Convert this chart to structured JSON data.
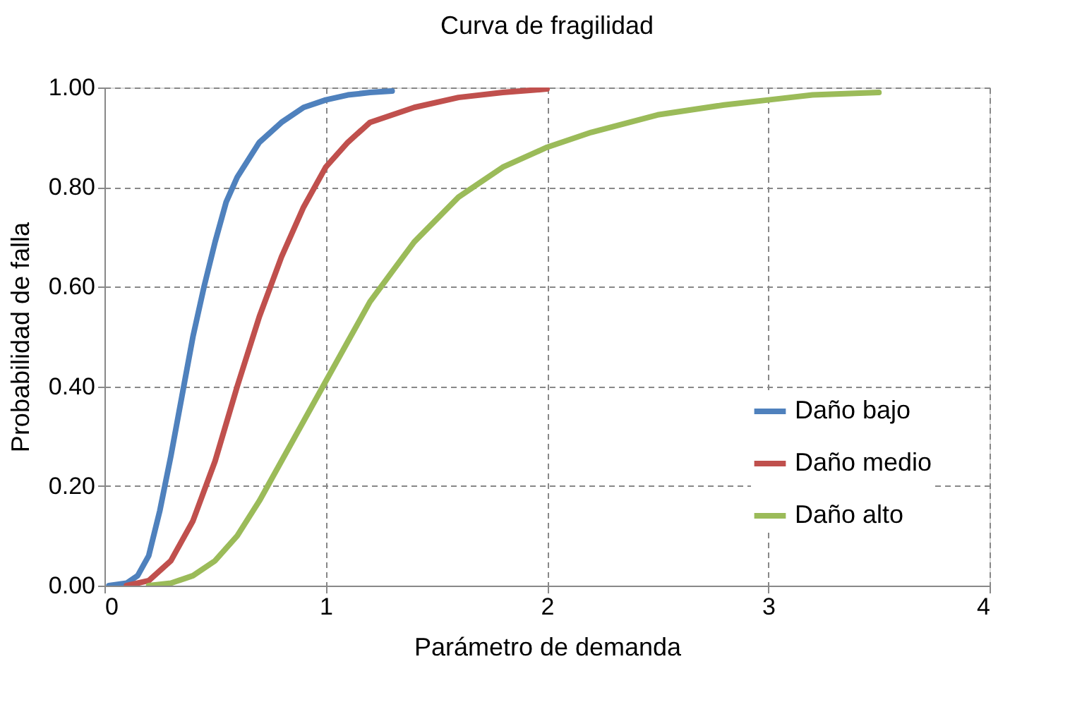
{
  "chart_data": {
    "type": "line",
    "title": "Curva de fragilidad",
    "xlabel": "Parámetro de demanda",
    "ylabel": "Probabilidad de falla",
    "xlim": [
      0,
      4
    ],
    "xticks": [
      0,
      1,
      2,
      3,
      4
    ],
    "ylim": [
      0,
      1
    ],
    "yticks": [
      {
        "value": 0,
        "label": "0.00"
      },
      {
        "value": 0.2,
        "label": "0.20"
      },
      {
        "value": 0.4,
        "label": "0.40"
      },
      {
        "value": 0.6,
        "label": "0.60"
      },
      {
        "value": 0.8,
        "label": "0.80"
      },
      {
        "value": 1,
        "label": "1.00"
      }
    ],
    "grid": true,
    "legend": "bottom right",
    "marker": "none",
    "line_style": "solid",
    "series": [
      {
        "name": "Daño bajo",
        "color": "#4f81bd",
        "x": [
          0.02,
          0.1,
          0.15,
          0.2,
          0.25,
          0.3,
          0.35,
          0.4,
          0.45,
          0.5,
          0.55,
          0.6,
          0.7,
          0.8,
          0.9,
          1.0,
          1.1,
          1.2,
          1.3
        ],
        "values": [
          0,
          0.005,
          0.02,
          0.06,
          0.15,
          0.26,
          0.38,
          0.5,
          0.6,
          0.69,
          0.77,
          0.82,
          0.89,
          0.93,
          0.96,
          0.975,
          0.985,
          0.99,
          0.993
        ]
      },
      {
        "name": "Daño medio",
        "color": "#c0504d",
        "x": [
          0.1,
          0.2,
          0.3,
          0.4,
          0.5,
          0.6,
          0.7,
          0.8,
          0.9,
          1.0,
          1.1,
          1.2,
          1.4,
          1.6,
          1.8,
          2.0
        ],
        "values": [
          0,
          0.01,
          0.05,
          0.13,
          0.25,
          0.4,
          0.54,
          0.66,
          0.76,
          0.84,
          0.89,
          0.93,
          0.96,
          0.98,
          0.99,
          0.997
        ]
      },
      {
        "name": "Daño alto",
        "color": "#9bbb59",
        "x": [
          0.2,
          0.3,
          0.4,
          0.5,
          0.6,
          0.7,
          0.8,
          0.9,
          1.0,
          1.1,
          1.2,
          1.3,
          1.4,
          1.6,
          1.8,
          2.0,
          2.2,
          2.5,
          2.8,
          3.0,
          3.2,
          3.5
        ],
        "values": [
          0,
          0.005,
          0.02,
          0.05,
          0.1,
          0.17,
          0.25,
          0.33,
          0.41,
          0.49,
          0.57,
          0.63,
          0.69,
          0.78,
          0.84,
          0.88,
          0.91,
          0.945,
          0.965,
          0.975,
          0.985,
          0.99
        ]
      }
    ]
  }
}
